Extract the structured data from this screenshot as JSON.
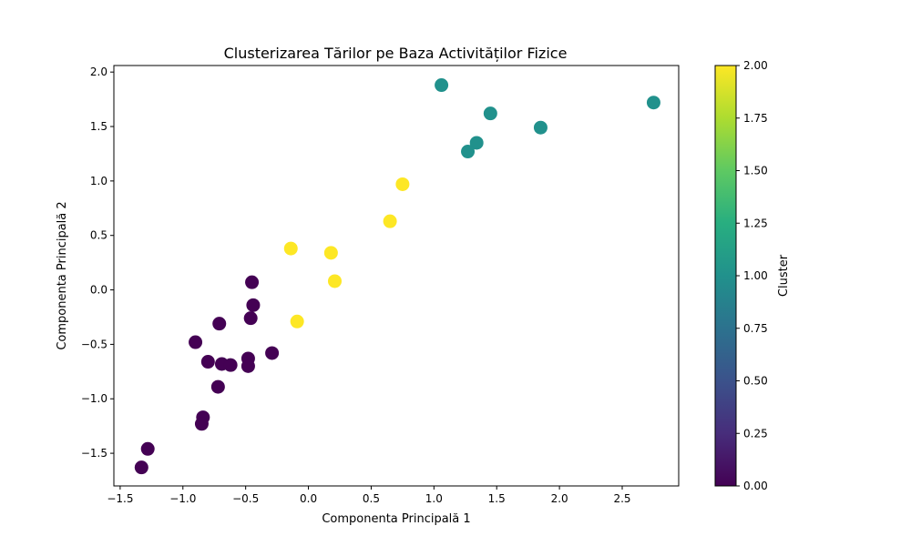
{
  "chart_data": {
    "type": "scatter",
    "title": "Clusterizarea Tărilor pe Baza Activităților Fizice",
    "xlabel": "Componenta Principală 1",
    "ylabel": "Componenta Principală 2",
    "xlim": [
      -1.55,
      2.95
    ],
    "ylim": [
      -1.8,
      2.06
    ],
    "xticks": [
      -1.5,
      -1.0,
      -0.5,
      0.0,
      0.5,
      1.0,
      1.5,
      2.0,
      2.5
    ],
    "xtick_labels": [
      "−1.5",
      "−1.0",
      "−0.5",
      "0.0",
      "0.5",
      "1.0",
      "1.5",
      "2.0",
      "2.5"
    ],
    "yticks": [
      -1.5,
      -1.0,
      -0.5,
      0.0,
      0.5,
      1.0,
      1.5,
      2.0
    ],
    "ytick_labels": [
      "−1.5",
      "−1.0",
      "−0.5",
      "0.0",
      "0.5",
      "1.0",
      "1.5",
      "2.0"
    ],
    "grid": false,
    "colormap": "viridis",
    "cluster_colors": {
      "0": "#440154",
      "1": "#21918c",
      "2": "#fde725"
    },
    "colorbar": {
      "label": "Cluster",
      "range": [
        0,
        2
      ],
      "ticks": [
        0.0,
        0.25,
        0.5,
        0.75,
        1.0,
        1.25,
        1.5,
        1.75,
        2.0
      ],
      "tick_labels": [
        "0.00",
        "0.25",
        "0.50",
        "0.75",
        "1.00",
        "1.25",
        "1.50",
        "1.75",
        "2.00"
      ]
    },
    "points": [
      {
        "x": 1.06,
        "y": 1.88,
        "cluster": 1
      },
      {
        "x": 2.75,
        "y": 1.72,
        "cluster": 1
      },
      {
        "x": 1.45,
        "y": 1.62,
        "cluster": 1
      },
      {
        "x": 1.85,
        "y": 1.49,
        "cluster": 1
      },
      {
        "x": 1.34,
        "y": 1.35,
        "cluster": 1
      },
      {
        "x": 1.27,
        "y": 1.27,
        "cluster": 1
      },
      {
        "x": 0.75,
        "y": 0.97,
        "cluster": 2
      },
      {
        "x": 0.65,
        "y": 0.63,
        "cluster": 2
      },
      {
        "x": -0.14,
        "y": 0.38,
        "cluster": 2
      },
      {
        "x": 0.18,
        "y": 0.34,
        "cluster": 2
      },
      {
        "x": 0.21,
        "y": 0.08,
        "cluster": 2
      },
      {
        "x": -0.09,
        "y": -0.29,
        "cluster": 2
      },
      {
        "x": -0.45,
        "y": 0.07,
        "cluster": 0
      },
      {
        "x": -0.44,
        "y": -0.14,
        "cluster": 0
      },
      {
        "x": -0.46,
        "y": -0.26,
        "cluster": 0
      },
      {
        "x": -0.71,
        "y": -0.31,
        "cluster": 0
      },
      {
        "x": -0.9,
        "y": -0.48,
        "cluster": 0
      },
      {
        "x": -0.29,
        "y": -0.58,
        "cluster": 0
      },
      {
        "x": -0.48,
        "y": -0.63,
        "cluster": 0
      },
      {
        "x": -0.8,
        "y": -0.66,
        "cluster": 0
      },
      {
        "x": -0.69,
        "y": -0.68,
        "cluster": 0
      },
      {
        "x": -0.62,
        "y": -0.69,
        "cluster": 0
      },
      {
        "x": -0.48,
        "y": -0.7,
        "cluster": 0
      },
      {
        "x": -0.72,
        "y": -0.89,
        "cluster": 0
      },
      {
        "x": -0.84,
        "y": -1.17,
        "cluster": 0
      },
      {
        "x": -0.85,
        "y": -1.23,
        "cluster": 0
      },
      {
        "x": -1.28,
        "y": -1.46,
        "cluster": 0
      },
      {
        "x": -1.33,
        "y": -1.63,
        "cluster": 0
      }
    ]
  }
}
